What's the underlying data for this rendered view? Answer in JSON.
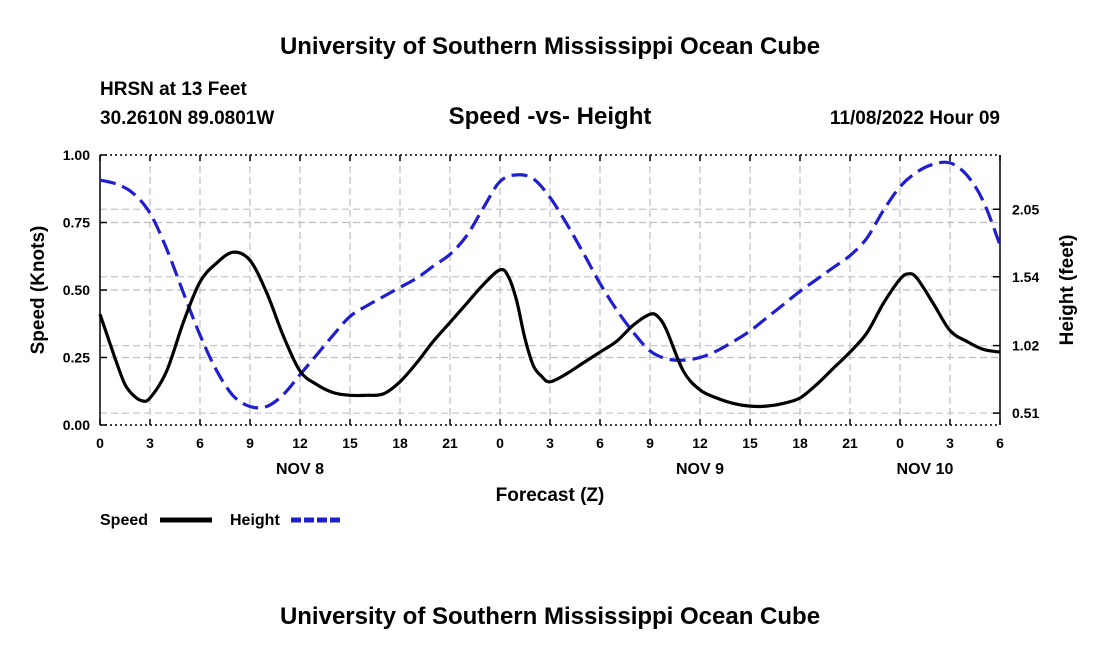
{
  "header": {
    "title_top": "University of Southern Mississippi Ocean Cube",
    "station": "HRSN at 13 Feet",
    "coords": "30.2610N  89.0801W",
    "chart_title": "Speed -vs- Height",
    "datetime": "11/08/2022 Hour 09",
    "title_bottom": "University of Southern Mississippi Ocean Cube"
  },
  "chart_data": {
    "type": "line",
    "title": "Speed -vs- Height",
    "xlabel": "Forecast (Z)",
    "ylabel_left": "Speed (Knots)",
    "ylabel_right": "Height (feet)",
    "x_range_hours": [
      0,
      54
    ],
    "y_left_range": [
      0,
      1.0
    ],
    "y_left_ticks": [
      "0.00",
      "0.25",
      "0.50",
      "0.75",
      "1.00"
    ],
    "y_left_tick_values": [
      0,
      0.25,
      0.5,
      0.75,
      1.0
    ],
    "y_right_range": [
      0.42,
      2.46
    ],
    "y_right_ticks": [
      "0.51",
      "1.02",
      "1.54",
      "2.05"
    ],
    "y_right_tick_values": [
      0.51,
      1.02,
      1.54,
      2.05
    ],
    "x_ticks": [
      {
        "hour": 0,
        "label": "0"
      },
      {
        "hour": 3,
        "label": "3"
      },
      {
        "hour": 6,
        "label": "6"
      },
      {
        "hour": 9,
        "label": "9"
      },
      {
        "hour": 12,
        "label": "12"
      },
      {
        "hour": 15,
        "label": "15"
      },
      {
        "hour": 18,
        "label": "18"
      },
      {
        "hour": 21,
        "label": "21"
      },
      {
        "hour": 24,
        "label": "0"
      },
      {
        "hour": 27,
        "label": "3"
      },
      {
        "hour": 30,
        "label": "6"
      },
      {
        "hour": 33,
        "label": "9"
      },
      {
        "hour": 36,
        "label": "12"
      },
      {
        "hour": 39,
        "label": "15"
      },
      {
        "hour": 42,
        "label": "18"
      },
      {
        "hour": 45,
        "label": "21"
      },
      {
        "hour": 48,
        "label": "0"
      },
      {
        "hour": 51,
        "label": "3"
      },
      {
        "hour": 54,
        "label": "6"
      }
    ],
    "day_labels": [
      {
        "hour": 12,
        "label": "NOV 8"
      },
      {
        "hour": 36,
        "label": "NOV 9"
      },
      {
        "hour": 49.5,
        "label": "NOV 10"
      }
    ],
    "series": [
      {
        "name": "Speed",
        "axis": "left",
        "color": "#000000",
        "dash": "solid",
        "points": [
          [
            0,
            0.41
          ],
          [
            0.5,
            0.32
          ],
          [
            1,
            0.23
          ],
          [
            1.5,
            0.15
          ],
          [
            2,
            0.11
          ],
          [
            2.5,
            0.09
          ],
          [
            3,
            0.1
          ],
          [
            4,
            0.2
          ],
          [
            5,
            0.38
          ],
          [
            6,
            0.53
          ],
          [
            7,
            0.6
          ],
          [
            8,
            0.64
          ],
          [
            9,
            0.61
          ],
          [
            10,
            0.49
          ],
          [
            11,
            0.33
          ],
          [
            12,
            0.2
          ],
          [
            13,
            0.15
          ],
          [
            14,
            0.12
          ],
          [
            15,
            0.11
          ],
          [
            16,
            0.11
          ],
          [
            17,
            0.115
          ],
          [
            18,
            0.16
          ],
          [
            19,
            0.23
          ],
          [
            20,
            0.31
          ],
          [
            21,
            0.38
          ],
          [
            22,
            0.45
          ],
          [
            23,
            0.52
          ],
          [
            24,
            0.575
          ],
          [
            24.5,
            0.55
          ],
          [
            25,
            0.46
          ],
          [
            25.5,
            0.32
          ],
          [
            26,
            0.22
          ],
          [
            26.5,
            0.18
          ],
          [
            27,
            0.16
          ],
          [
            28,
            0.19
          ],
          [
            29,
            0.23
          ],
          [
            30,
            0.27
          ],
          [
            31,
            0.31
          ],
          [
            32,
            0.37
          ],
          [
            33,
            0.41
          ],
          [
            33.5,
            0.4
          ],
          [
            34,
            0.35
          ],
          [
            35,
            0.2
          ],
          [
            36,
            0.13
          ],
          [
            37,
            0.1
          ],
          [
            38,
            0.08
          ],
          [
            39,
            0.07
          ],
          [
            40,
            0.07
          ],
          [
            41,
            0.08
          ],
          [
            42,
            0.1
          ],
          [
            43,
            0.15
          ],
          [
            44,
            0.21
          ],
          [
            45,
            0.27
          ],
          [
            46,
            0.34
          ],
          [
            47,
            0.45
          ],
          [
            48,
            0.54
          ],
          [
            48.5,
            0.56
          ],
          [
            49,
            0.545
          ],
          [
            50,
            0.45
          ],
          [
            51,
            0.35
          ],
          [
            52,
            0.31
          ],
          [
            53,
            0.28
          ],
          [
            54,
            0.27
          ]
        ]
      },
      {
        "name": "Height",
        "axis": "right",
        "color": "#1f1fd0",
        "dash": "dashed",
        "points": [
          [
            0,
            2.27
          ],
          [
            1,
            2.24
          ],
          [
            2,
            2.17
          ],
          [
            3,
            2.02
          ],
          [
            4,
            1.75
          ],
          [
            5,
            1.42
          ],
          [
            6,
            1.1
          ],
          [
            7,
            0.83
          ],
          [
            8,
            0.64
          ],
          [
            9,
            0.56
          ],
          [
            10,
            0.56
          ],
          [
            11,
            0.65
          ],
          [
            12,
            0.8
          ],
          [
            13,
            0.95
          ],
          [
            14,
            1.1
          ],
          [
            15,
            1.24
          ],
          [
            16,
            1.32
          ],
          [
            17,
            1.39
          ],
          [
            18,
            1.46
          ],
          [
            19,
            1.53
          ],
          [
            20,
            1.62
          ],
          [
            21,
            1.71
          ],
          [
            22,
            1.85
          ],
          [
            23,
            2.06
          ],
          [
            24,
            2.26
          ],
          [
            25,
            2.31
          ],
          [
            26,
            2.28
          ],
          [
            27,
            2.14
          ],
          [
            28,
            1.94
          ],
          [
            29,
            1.72
          ],
          [
            30,
            1.49
          ],
          [
            31,
            1.29
          ],
          [
            32,
            1.12
          ],
          [
            33,
            0.98
          ],
          [
            34,
            0.92
          ],
          [
            35,
            0.91
          ],
          [
            36,
            0.93
          ],
          [
            37,
            0.98
          ],
          [
            38,
            1.05
          ],
          [
            39,
            1.13
          ],
          [
            40,
            1.23
          ],
          [
            41,
            1.33
          ],
          [
            42,
            1.43
          ],
          [
            43,
            1.52
          ],
          [
            44,
            1.61
          ],
          [
            45,
            1.7
          ],
          [
            46,
            1.83
          ],
          [
            47,
            2.04
          ],
          [
            48,
            2.22
          ],
          [
            49,
            2.33
          ],
          [
            50,
            2.39
          ],
          [
            51,
            2.4
          ],
          [
            52,
            2.31
          ],
          [
            53,
            2.11
          ],
          [
            54,
            1.78
          ]
        ]
      }
    ],
    "legend": [
      {
        "name": "Speed",
        "color": "#000000",
        "dash": "solid"
      },
      {
        "name": "Height",
        "color": "#1f1fd0",
        "dash": "dashed"
      }
    ]
  }
}
